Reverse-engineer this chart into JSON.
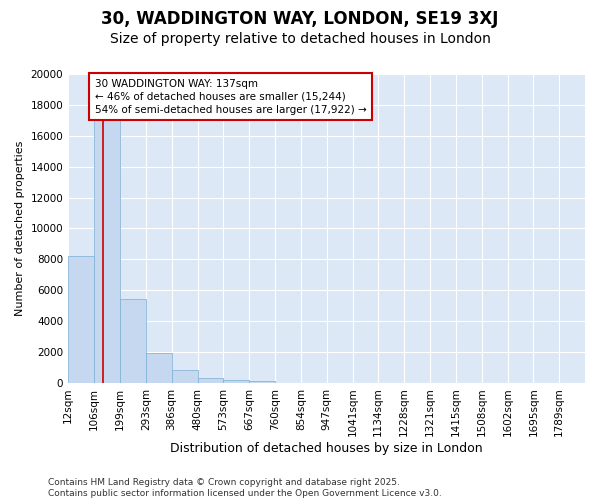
{
  "title1": "30, WADDINGTON WAY, LONDON, SE19 3XJ",
  "title2": "Size of property relative to detached houses in London",
  "xlabel": "Distribution of detached houses by size in London",
  "ylabel": "Number of detached properties",
  "bar_values": [
    8200,
    17000,
    5400,
    1900,
    800,
    300,
    200,
    100,
    0,
    0,
    0,
    0,
    0,
    0,
    0,
    0,
    0,
    0,
    0,
    0
  ],
  "bin_edges": [
    12,
    106,
    199,
    293,
    386,
    480,
    573,
    667,
    760,
    854,
    947,
    1041,
    1134,
    1228,
    1321,
    1415,
    1508,
    1602,
    1695,
    1789,
    1882
  ],
  "bar_color": "#c5d8ef",
  "bar_edgecolor": "#7aadd4",
  "background_color": "#dce8f5",
  "grid_color": "#ffffff",
  "red_line_x": 137,
  "annotation_text": "30 WADDINGTON WAY: 137sqm\n← 46% of detached houses are smaller (15,244)\n54% of semi-detached houses are larger (17,922) →",
  "annotation_box_color": "#cc0000",
  "ylim": [
    0,
    20000
  ],
  "yticks": [
    0,
    2000,
    4000,
    6000,
    8000,
    10000,
    12000,
    14000,
    16000,
    18000,
    20000
  ],
  "footer_line1": "Contains HM Land Registry data © Crown copyright and database right 2025.",
  "footer_line2": "Contains public sector information licensed under the Open Government Licence v3.0.",
  "title1_fontsize": 12,
  "title2_fontsize": 10,
  "xlabel_fontsize": 9,
  "ylabel_fontsize": 8,
  "tick_fontsize": 7.5,
  "annotation_fontsize": 7.5,
  "footer_fontsize": 6.5
}
